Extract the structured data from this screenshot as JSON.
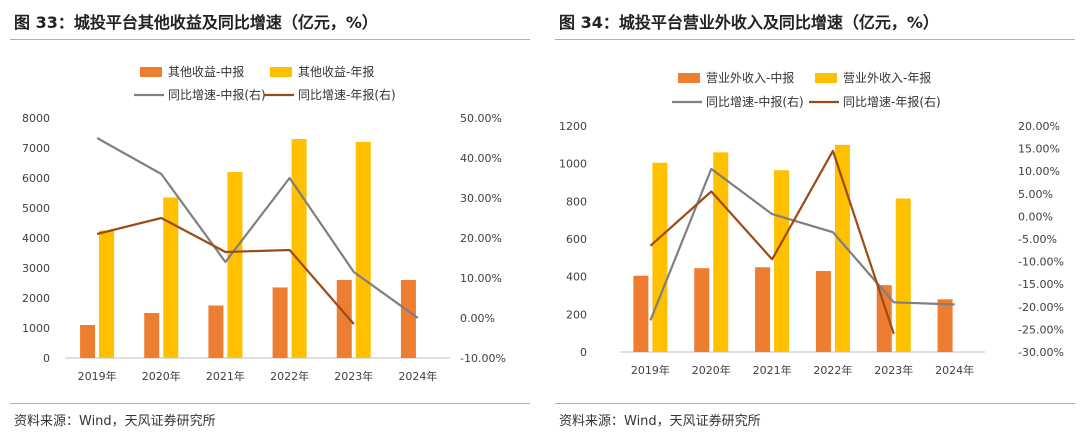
{
  "colors": {
    "mid": "#ed7d31",
    "annual": "#ffc000",
    "growth_mid": "#7f7f7f",
    "growth_annual": "#9c4a16",
    "rule": "#f0a640"
  },
  "source": "资料来源：Wind，天风证券研究所",
  "charts": [
    {
      "title": "图 33：城投平台其他收益及同比增速（亿元，%）",
      "legend": {
        "mid": "其他收益-中报",
        "annual": "其他收益-年报",
        "growth_mid": "同比增速-中报(右)",
        "growth_annual": "同比增速-年报(右)"
      },
      "left_ticks": [
        "0",
        "1000",
        "2000",
        "3000",
        "4000",
        "5000",
        "6000",
        "7000",
        "8000"
      ],
      "right_ticks": [
        "-10.00%",
        "0.00%",
        "10.00%",
        "20.00%",
        "30.00%",
        "40.00%",
        "50.00%"
      ],
      "categories": [
        "2019年",
        "2020年",
        "2021年",
        "2022年",
        "2023年",
        "2024年"
      ]
    },
    {
      "title": "图 34：城投平台营业外收入及同比增速（亿元，%）",
      "legend": {
        "mid": "营业外收入-中报",
        "annual": "营业外收入-年报",
        "growth_mid": "同比增速-中报(右)",
        "growth_annual": "同比增速-年报(右)"
      },
      "left_ticks": [
        "0",
        "200",
        "400",
        "600",
        "800",
        "1000",
        "1200"
      ],
      "right_ticks": [
        "-30.00%",
        "-25.00%",
        "-20.00%",
        "-15.00%",
        "-10.00%",
        "-5.00%",
        "0.00%",
        "5.00%",
        "10.00%",
        "15.00%",
        "20.00%"
      ],
      "categories": [
        "2019年",
        "2020年",
        "2021年",
        "2022年",
        "2023年",
        "2024年"
      ]
    }
  ],
  "chart_data": [
    {
      "type": "bar",
      "categories": [
        "2019年",
        "2020年",
        "2021年",
        "2022年",
        "2023年",
        "2024年"
      ],
      "ylim": [
        0,
        8000
      ],
      "y2lim": [
        -10,
        50
      ],
      "series": [
        {
          "name": "其他收益-中报",
          "kind": "bar",
          "axis": "left",
          "values": [
            1100,
            1500,
            1750,
            2350,
            2600,
            2600
          ]
        },
        {
          "name": "其他收益-年报",
          "kind": "bar",
          "axis": "left",
          "values": [
            4250,
            5350,
            6200,
            7300,
            7200,
            null
          ]
        },
        {
          "name": "同比增速-中报(右)",
          "kind": "line",
          "axis": "right",
          "values": [
            45,
            36,
            14,
            35,
            11.5,
            0
          ]
        },
        {
          "name": "同比增速-年报(右)",
          "kind": "line",
          "axis": "right",
          "values": [
            21,
            25,
            16.5,
            17,
            -1.5,
            null
          ]
        }
      ],
      "legend_position": "top",
      "grid": false
    },
    {
      "type": "bar",
      "categories": [
        "2019年",
        "2020年",
        "2021年",
        "2022年",
        "2023年",
        "2024年"
      ],
      "ylim": [
        0,
        1200
      ],
      "y2lim": [
        -30,
        20
      ],
      "series": [
        {
          "name": "营业外收入-中报",
          "kind": "bar",
          "axis": "left",
          "values": [
            405,
            445,
            450,
            430,
            355,
            280
          ]
        },
        {
          "name": "营业外收入-年报",
          "kind": "bar",
          "axis": "left",
          "values": [
            1005,
            1060,
            965,
            1100,
            815,
            null
          ]
        },
        {
          "name": "同比增速-中报(右)",
          "kind": "line",
          "axis": "right",
          "values": [
            -23,
            10.5,
            0.5,
            -3.5,
            -19,
            -19.5
          ]
        },
        {
          "name": "同比增速-年报(右)",
          "kind": "line",
          "axis": "right",
          "values": [
            -6.5,
            5.5,
            -9.5,
            14.5,
            -26,
            null
          ]
        }
      ],
      "legend_position": "top",
      "grid": false
    }
  ]
}
